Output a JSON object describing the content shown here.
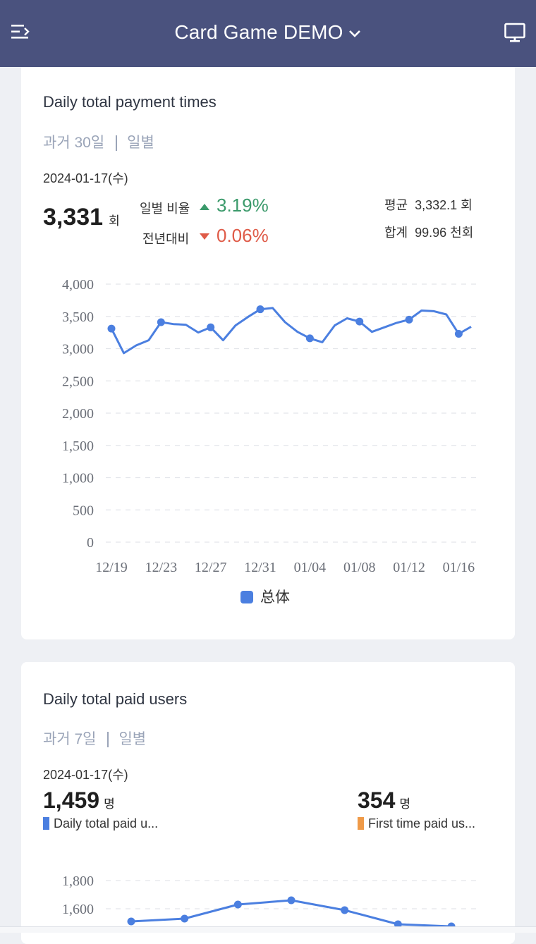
{
  "header": {
    "title": "Card Game DEMO"
  },
  "card1": {
    "title": "Daily total payment times",
    "period": "과거 30일",
    "granularity": "일별",
    "date": "2024-01-17(수)",
    "value": "3,331",
    "unit": "회",
    "daily_ratio_label": "일별 비율",
    "daily_ratio_value": "3.19%",
    "yoy_label": "전년대비",
    "yoy_value": "0.06%",
    "avg_label": "평균",
    "avg_value": "3,332.1 회",
    "sum_label": "합계",
    "sum_value": "99.96 천회",
    "legend": "总体"
  },
  "card2": {
    "title": "Daily total paid users",
    "period": "과거 7일",
    "granularity": "일별",
    "date": "2024-01-17(수)",
    "kpi1": {
      "value": "1,459",
      "unit": "명",
      "label": "Daily total paid u..."
    },
    "kpi2": {
      "value": "354",
      "unit": "명",
      "label": "First time paid us..."
    }
  },
  "colors": {
    "header_bg": "#4a527e",
    "series": "#4b7fe0",
    "up": "#3b9a6b",
    "down": "#df5b48",
    "first_time": "#ef9a48"
  },
  "chart_data": [
    {
      "type": "line",
      "x": [
        "12/19",
        "12/20",
        "12/21",
        "12/22",
        "12/23",
        "12/24",
        "12/25",
        "12/26",
        "12/27",
        "12/28",
        "12/29",
        "12/30",
        "12/31",
        "01/01",
        "01/02",
        "01/03",
        "01/04",
        "01/05",
        "01/06",
        "01/07",
        "01/08",
        "01/09",
        "01/10",
        "01/11",
        "01/12",
        "01/13",
        "01/14",
        "01/15",
        "01/16",
        "01/17"
      ],
      "xticks": [
        "12/19",
        "12/23",
        "12/27",
        "12/31",
        "01/04",
        "01/08",
        "01/12",
        "01/16"
      ],
      "yticks": [
        "4,000",
        "3,500",
        "3,000",
        "2,500",
        "2,000",
        "1,500",
        "1,000",
        "500",
        "0"
      ],
      "series": [
        {
          "name": "总体",
          "values": [
            3310,
            2930,
            3050,
            3130,
            3410,
            3380,
            3370,
            3250,
            3330,
            3130,
            3360,
            3490,
            3610,
            3630,
            3410,
            3260,
            3160,
            3100,
            3360,
            3470,
            3420,
            3260,
            3330,
            3400,
            3450,
            3590,
            3580,
            3530,
            3230,
            3340
          ]
        }
      ],
      "ylim": [
        0,
        4000
      ],
      "markers": [
        "12/19",
        "12/23",
        "12/27",
        "12/31",
        "01/04",
        "01/08",
        "01/12",
        "01/16"
      ],
      "grid": true,
      "legend_position": "bottom"
    },
    {
      "type": "line",
      "yticks": [
        "1,800",
        "1,600"
      ],
      "series": [
        {
          "name": "Daily total paid u...",
          "values": [
            1510,
            1530,
            1630,
            1660,
            1590,
            1490,
            1475
          ]
        }
      ],
      "ylim": [
        0,
        1800
      ],
      "grid": true
    }
  ]
}
